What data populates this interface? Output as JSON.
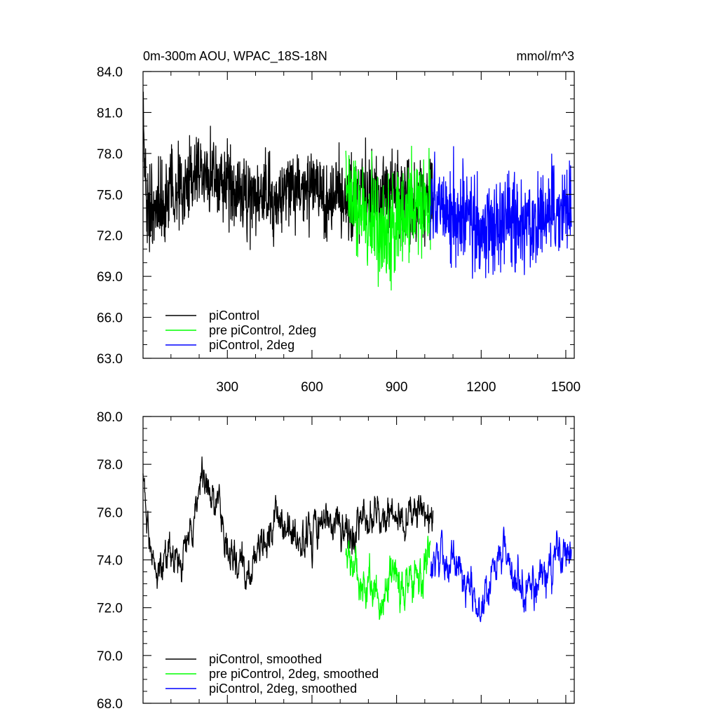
{
  "header": {
    "title": "0m-300m AOU, WPAC_18S-18N",
    "units": "mmol/m^3"
  },
  "chart_data": [
    {
      "type": "line",
      "title": "0m-300m AOU, WPAC_18S-18N",
      "units": "mmol/m^3",
      "xlim": [
        1,
        1530
      ],
      "ylim": [
        63,
        84
      ],
      "xticks": [
        300,
        600,
        900,
        1200,
        1500
      ],
      "xtick_labels": [
        "300",
        "600",
        "900",
        "1200",
        "1500"
      ],
      "yticks": [
        63,
        66,
        69,
        72,
        75,
        78,
        81,
        84
      ],
      "ytick_labels": [
        "63.0",
        "66.0",
        "69.0",
        "72.0",
        "75.0",
        "78.0",
        "81.0",
        "84.0"
      ],
      "grid": false,
      "legend_position": "bottom-left",
      "series": [
        {
          "name": "piControl",
          "color": "#000000",
          "x_range": [
            1,
            1030
          ],
          "anchors": [
            [
              1,
              80.5
            ],
            [
              15,
              74
            ],
            [
              50,
              74.5
            ],
            [
              100,
              75
            ],
            [
              150,
              75.5
            ],
            [
              200,
              77
            ],
            [
              250,
              76.5
            ],
            [
              300,
              75.5
            ],
            [
              350,
              75
            ],
            [
              400,
              75
            ],
            [
              450,
              75
            ],
            [
              500,
              75
            ],
            [
              550,
              75.5
            ],
            [
              600,
              75.5
            ],
            [
              650,
              75
            ],
            [
              700,
              75
            ],
            [
              730,
              74.5
            ],
            [
              760,
              75
            ],
            [
              800,
              75.2
            ],
            [
              850,
              75
            ],
            [
              900,
              74.8
            ],
            [
              950,
              74.5
            ],
            [
              1000,
              74.5
            ],
            [
              1030,
              74.5
            ]
          ],
          "noise_amplitude": 2.6
        },
        {
          "name": "pre piControl, 2deg",
          "color": "#00ff00",
          "x_range": [
            720,
            1020
          ],
          "anchors": [
            [
              720,
              75
            ],
            [
              750,
              74
            ],
            [
              800,
              73
            ],
            [
              850,
              72
            ],
            [
              900,
              73
            ],
            [
              950,
              73.5
            ],
            [
              1000,
              74
            ],
            [
              1020,
              74
            ]
          ],
          "noise_amplitude": 3.4
        },
        {
          "name": "piControl, 2deg",
          "color": "#0000ff",
          "x_range": [
            1020,
            1520
          ],
          "anchors": [
            [
              1020,
              74
            ],
            [
              1100,
              73.5
            ],
            [
              1150,
              73
            ],
            [
              1200,
              72
            ],
            [
              1250,
              72.5
            ],
            [
              1300,
              73
            ],
            [
              1350,
              73
            ],
            [
              1400,
              73.5
            ],
            [
              1450,
              73.5
            ],
            [
              1500,
              74
            ],
            [
              1520,
              74
            ]
          ],
          "noise_amplitude": 3.1
        }
      ]
    },
    {
      "type": "line",
      "xlim": [
        1,
        1530
      ],
      "ylim": [
        68,
        80
      ],
      "xticks": [
        300,
        600,
        900,
        1200,
        1500
      ],
      "yticks": [
        68,
        70,
        72,
        74,
        76,
        78,
        80
      ],
      "ytick_labels": [
        "68.0",
        "70.0",
        "72.0",
        "74.0",
        "76.0",
        "78.0",
        "80.0"
      ],
      "grid": false,
      "legend_position": "bottom-left",
      "series": [
        {
          "name": "piControl, smoothed",
          "color": "#000000",
          "x_range": [
            1,
            1030
          ],
          "anchors": [
            [
              1,
              77.5
            ],
            [
              20,
              75
            ],
            [
              40,
              73.5
            ],
            [
              70,
              74
            ],
            [
              110,
              74.5
            ],
            [
              150,
              74.2
            ],
            [
              190,
              76
            ],
            [
              210,
              77.5
            ],
            [
              240,
              77
            ],
            [
              270,
              76
            ],
            [
              300,
              74.5
            ],
            [
              350,
              74
            ],
            [
              380,
              73.5
            ],
            [
              420,
              74.5
            ],
            [
              450,
              75
            ],
            [
              480,
              76
            ],
            [
              510,
              75.5
            ],
            [
              560,
              75
            ],
            [
              620,
              75.5
            ],
            [
              680,
              75.5
            ],
            [
              720,
              75
            ],
            [
              760,
              75.5
            ],
            [
              800,
              76
            ],
            [
              850,
              76
            ],
            [
              900,
              75.5
            ],
            [
              950,
              76
            ],
            [
              1000,
              76
            ],
            [
              1030,
              75.5
            ]
          ],
          "noise_amplitude": 1.0
        },
        {
          "name": "pre piControl, 2deg, smoothed",
          "color": "#00ff00",
          "x_range": [
            720,
            1020
          ],
          "anchors": [
            [
              720,
              74
            ],
            [
              760,
              73.5
            ],
            [
              800,
              73
            ],
            [
              850,
              72.5
            ],
            [
              900,
              73
            ],
            [
              950,
              73.2
            ],
            [
              1000,
              73.5
            ],
            [
              1020,
              74
            ]
          ],
          "noise_amplitude": 1.2
        },
        {
          "name": "piControl, 2deg, smoothed",
          "color": "#0000ff",
          "x_range": [
            1020,
            1520
          ],
          "anchors": [
            [
              1020,
              74
            ],
            [
              1080,
              74
            ],
            [
              1120,
              73.5
            ],
            [
              1160,
              73
            ],
            [
              1200,
              71.5
            ],
            [
              1240,
              73.5
            ],
            [
              1280,
              74.5
            ],
            [
              1320,
              73.5
            ],
            [
              1360,
              73
            ],
            [
              1400,
              73
            ],
            [
              1440,
              73.5
            ],
            [
              1480,
              74
            ],
            [
              1500,
              74.5
            ],
            [
              1520,
              74
            ]
          ],
          "noise_amplitude": 1.1
        }
      ]
    }
  ]
}
